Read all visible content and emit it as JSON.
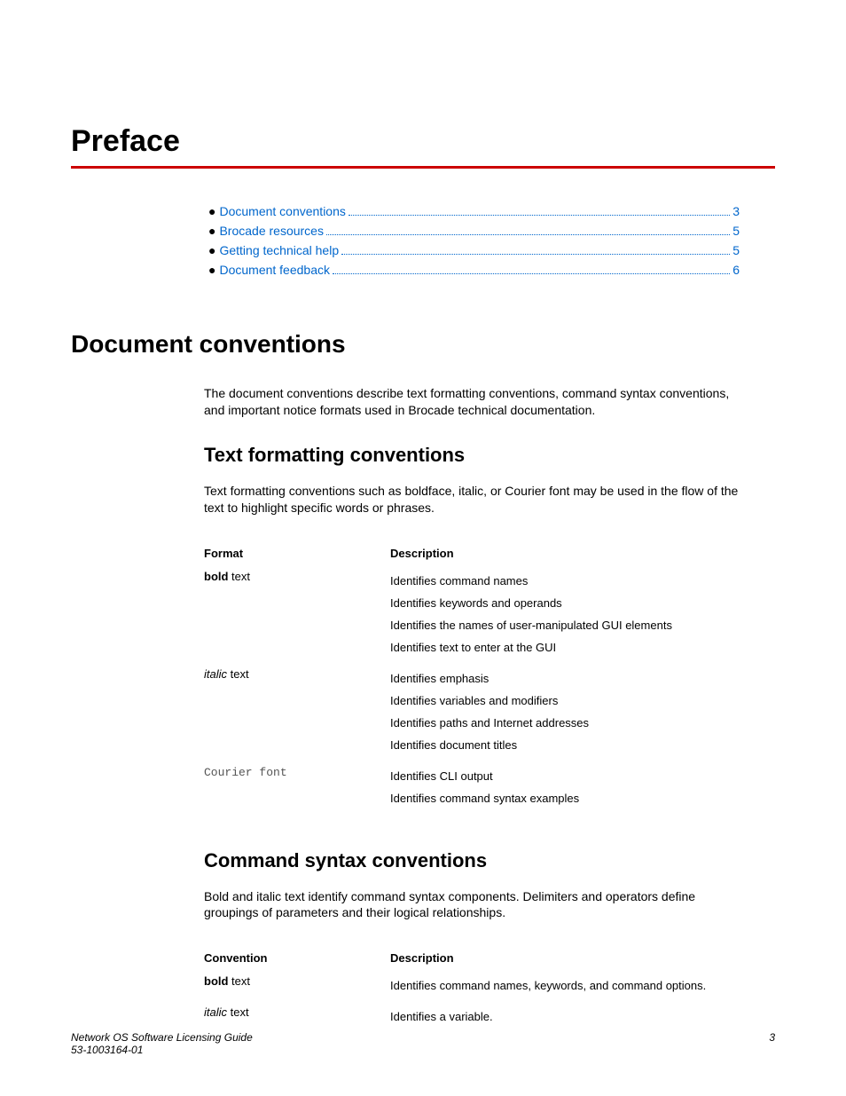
{
  "colors": {
    "accent_rule": "#cc0000",
    "link": "#0066cc",
    "text": "#000000",
    "background": "#ffffff"
  },
  "typography": {
    "title_size_pt": 34,
    "h1_size_pt": 28,
    "h2_size_pt": 22,
    "body_size_pt": 14,
    "table_size_pt": 13,
    "footer_size_pt": 12,
    "heading_font": "Arial Narrow",
    "body_font": "Arial"
  },
  "title": "Preface",
  "toc": [
    {
      "label": "Document conventions",
      "page": "3"
    },
    {
      "label": "Brocade resources",
      "page": "5"
    },
    {
      "label": "Getting technical help",
      "page": "5"
    },
    {
      "label": "Document feedback",
      "page": "6"
    }
  ],
  "section1": {
    "heading": "Document conventions",
    "intro": "The document conventions describe text formatting conventions, command syntax conventions, and important notice formats used in Brocade technical documentation."
  },
  "text_formatting": {
    "heading": "Text formatting conventions",
    "intro": "Text formatting conventions such as boldface, italic, or Courier font may be used in the flow of the text to highlight specific words or phrases.",
    "columns": {
      "c1": "Format",
      "c2": "Description"
    },
    "rows": [
      {
        "format_prefix": "bold",
        "format_suffix": " text",
        "style": "bold",
        "desc": [
          "Identifies command names",
          "Identifies keywords and operands",
          "Identifies the names of user-manipulated GUI elements",
          "Identifies text to enter at the GUI"
        ]
      },
      {
        "format_prefix": "italic",
        "format_suffix": " text",
        "style": "italic",
        "desc": [
          "Identifies emphasis",
          "Identifies variables and modifiers",
          "Identifies paths and Internet addresses",
          "Identifies document titles"
        ]
      },
      {
        "format_prefix": "Courier font",
        "format_suffix": "",
        "style": "mono",
        "desc": [
          "Identifies CLI output",
          "Identifies command syntax examples"
        ]
      }
    ]
  },
  "command_syntax": {
    "heading": "Command syntax conventions",
    "intro": "Bold and italic text identify command syntax components. Delimiters and operators define groupings of parameters and their logical relationships.",
    "columns": {
      "c1": "Convention",
      "c2": "Description"
    },
    "rows": [
      {
        "format_prefix": "bold",
        "format_suffix": " text",
        "style": "bold",
        "desc": [
          "Identifies command names, keywords, and command options."
        ]
      },
      {
        "format_prefix": "italic",
        "format_suffix": " text",
        "style": "italic",
        "desc": [
          "Identifies a variable."
        ]
      }
    ]
  },
  "footer": {
    "doc_title": "Network OS Software Licensing Guide",
    "doc_number": "53-1003164-01",
    "page": "3"
  }
}
